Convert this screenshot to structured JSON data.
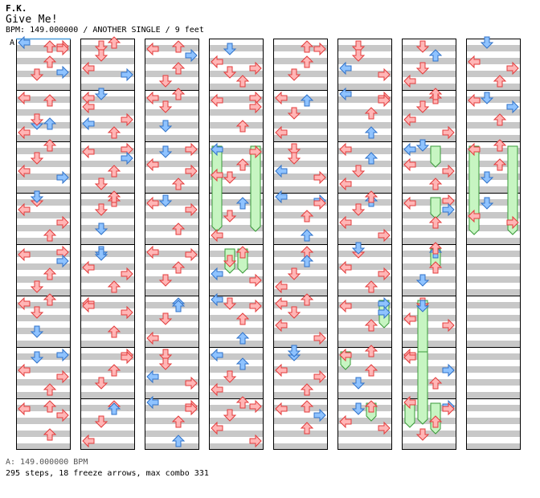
{
  "song": {
    "artist": "F.K.",
    "title": "Give Me!",
    "meta": "BPM: 149.000000 / ANOTHER SINGLE / 9 feet"
  },
  "bpm_marker": "A",
  "footer": {
    "bpm_line": "A: 149.000000 BPM",
    "stats_line": "295 steps, 18 freeze arrows, max combo 331"
  },
  "colors": {
    "red_fill": "#ffb6b6",
    "red_stroke": "#e33b3b",
    "blue_fill": "#8fc3ff",
    "blue_stroke": "#2f72c9",
    "pink_fill": "#ffc2ff",
    "pink_stroke": "#c03ac0",
    "freeze_fill": "#c7f5c2",
    "freeze_stroke": "#3a9a3a",
    "stripe_gray": "#c8c8c8",
    "frame": "#000000",
    "first_line": "#4a9ad8"
  },
  "chart": {
    "columns_of_measures": 8,
    "measures_per_column": 8,
    "lanes": [
      "left",
      "down",
      "up",
      "right"
    ],
    "notes": [
      [
        0,
        0,
        2,
        "r"
      ],
      [
        0,
        0,
        3,
        "r"
      ],
      [
        0,
        1,
        3,
        "b"
      ],
      [
        0,
        3,
        1,
        "b"
      ],
      [
        0,
        3,
        2,
        "b"
      ],
      [
        0,
        2,
        0,
        "r"
      ],
      [
        0,
        6,
        1,
        "r"
      ],
      [
        0,
        8,
        3,
        "r"
      ],
      [
        0,
        10,
        0,
        "r"
      ],
      [
        0,
        12,
        3,
        "b"
      ],
      [
        0,
        14,
        2,
        "r"
      ],
      [
        1,
        0,
        1,
        "r"
      ],
      [
        1,
        2,
        0,
        "r"
      ],
      [
        1,
        3,
        0,
        "b"
      ],
      [
        1,
        4,
        3,
        "r"
      ],
      [
        1,
        6,
        2,
        "r"
      ],
      [
        1,
        8,
        1,
        "b"
      ],
      [
        1,
        10,
        0,
        "r"
      ],
      [
        1,
        12,
        3,
        "r"
      ],
      [
        1,
        14,
        2,
        "r"
      ],
      [
        2,
        0,
        2,
        "r"
      ],
      [
        2,
        2,
        0,
        "r"
      ],
      [
        2,
        4,
        3,
        "r"
      ],
      [
        2,
        6,
        1,
        "b"
      ],
      [
        2,
        8,
        0,
        "r"
      ],
      [
        2,
        10,
        2,
        "b"
      ],
      [
        2,
        12,
        1,
        "r"
      ],
      [
        2,
        14,
        3,
        "r"
      ],
      [
        3,
        1,
        1,
        "r"
      ],
      [
        3,
        2,
        3,
        "r"
      ],
      [
        3,
        4,
        0,
        "b"
      ],
      [
        3,
        5,
        0,
        "r"
      ],
      [
        3,
        8,
        2,
        "r"
      ],
      [
        3,
        10,
        1,
        "r"
      ],
      [
        3,
        12,
        0,
        "b"
      ],
      [
        3,
        14,
        3,
        "r"
      ],
      [
        4,
        0,
        2,
        "r"
      ],
      [
        4,
        2,
        0,
        "r"
      ],
      [
        4,
        4,
        1,
        "r"
      ],
      [
        4,
        6,
        3,
        "b"
      ],
      [
        4,
        8,
        2,
        "r"
      ],
      [
        4,
        10,
        0,
        "r"
      ],
      [
        4,
        12,
        1,
        "b"
      ],
      [
        4,
        14,
        2,
        "r"
      ],
      [
        5,
        0,
        1,
        "r"
      ],
      [
        5,
        2,
        3,
        "r"
      ],
      [
        5,
        4,
        0,
        "r"
      ],
      [
        5,
        6,
        2,
        "b"
      ],
      [
        5,
        8,
        1,
        "r"
      ],
      [
        5,
        10,
        3,
        "b"
      ],
      [
        5,
        12,
        0,
        "r"
      ],
      [
        5,
        14,
        2,
        "r"
      ],
      [
        6,
        0,
        1,
        "r"
      ],
      [
        6,
        2,
        2,
        "r"
      ],
      [
        6,
        4,
        0,
        "b"
      ],
      [
        6,
        6,
        3,
        "r"
      ],
      [
        6,
        8,
        2,
        "b"
      ],
      [
        6,
        10,
        1,
        "r"
      ],
      [
        6,
        12,
        0,
        "r"
      ],
      [
        6,
        14,
        3,
        "b"
      ],
      [
        7,
        2,
        1,
        "b"
      ],
      [
        7,
        4,
        0,
        "r"
      ],
      [
        7,
        8,
        2,
        "r"
      ],
      [
        7,
        10,
        0,
        "r"
      ],
      [
        7,
        14,
        3,
        "b"
      ]
    ],
    "freezes": [
      [
        3,
        2,
        0,
        3,
        9
      ],
      [
        3,
        2,
        3,
        3,
        9
      ],
      [
        3,
        4,
        1,
        4,
        6
      ],
      [
        3,
        4,
        2,
        4,
        6
      ],
      [
        6,
        2,
        2,
        2,
        5
      ],
      [
        6,
        3,
        2,
        3,
        5
      ],
      [
        6,
        4,
        2,
        4,
        5
      ],
      [
        6,
        5,
        1,
        6,
        1
      ],
      [
        6,
        7,
        0,
        7,
        6
      ],
      [
        6,
        6,
        1,
        7,
        5
      ],
      [
        6,
        7,
        2,
        7,
        8
      ],
      [
        7,
        2,
        0,
        3,
        10
      ],
      [
        7,
        2,
        3,
        3,
        10
      ],
      [
        5,
        5,
        3,
        5,
        7
      ],
      [
        5,
        6,
        0,
        6,
        4
      ],
      [
        5,
        7,
        2,
        7,
        4
      ]
    ],
    "empty_measures": [
      [
        7,
        4
      ],
      [
        7,
        5
      ],
      [
        7,
        6
      ],
      [
        7,
        7
      ]
    ]
  }
}
